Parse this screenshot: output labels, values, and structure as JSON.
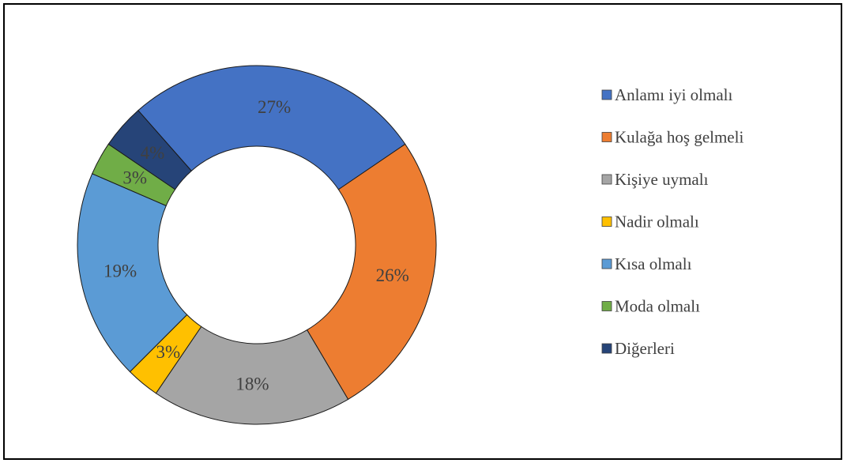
{
  "chart_data": {
    "type": "pie",
    "style": "donut",
    "title": "",
    "legend_position": "right",
    "slices": [
      {
        "name": "Anlamı iyi olmalı",
        "value": 27,
        "label": "27%",
        "color": "#4472C4"
      },
      {
        "name": "Kulağa hoş gelmeli",
        "value": 26,
        "label": "26%",
        "color": "#ED7D31"
      },
      {
        "name": "Kişiye uymalı",
        "value": 18,
        "label": "18%",
        "color": "#A5A5A5"
      },
      {
        "name": "Nadir olmalı",
        "value": 3,
        "label": "3%",
        "color": "#FFC000"
      },
      {
        "name": "Kısa olmalı",
        "value": 19,
        "label": "19%",
        "color": "#5B9BD5"
      },
      {
        "name": "Moda olmalı",
        "value": 3,
        "label": "3%",
        "color": "#70AD47"
      },
      {
        "name": "Diğerleri",
        "value": 4,
        "label": "4%",
        "color": "#264478"
      }
    ],
    "draw_order": [
      1,
      2,
      3,
      4,
      5,
      6,
      0
    ]
  }
}
